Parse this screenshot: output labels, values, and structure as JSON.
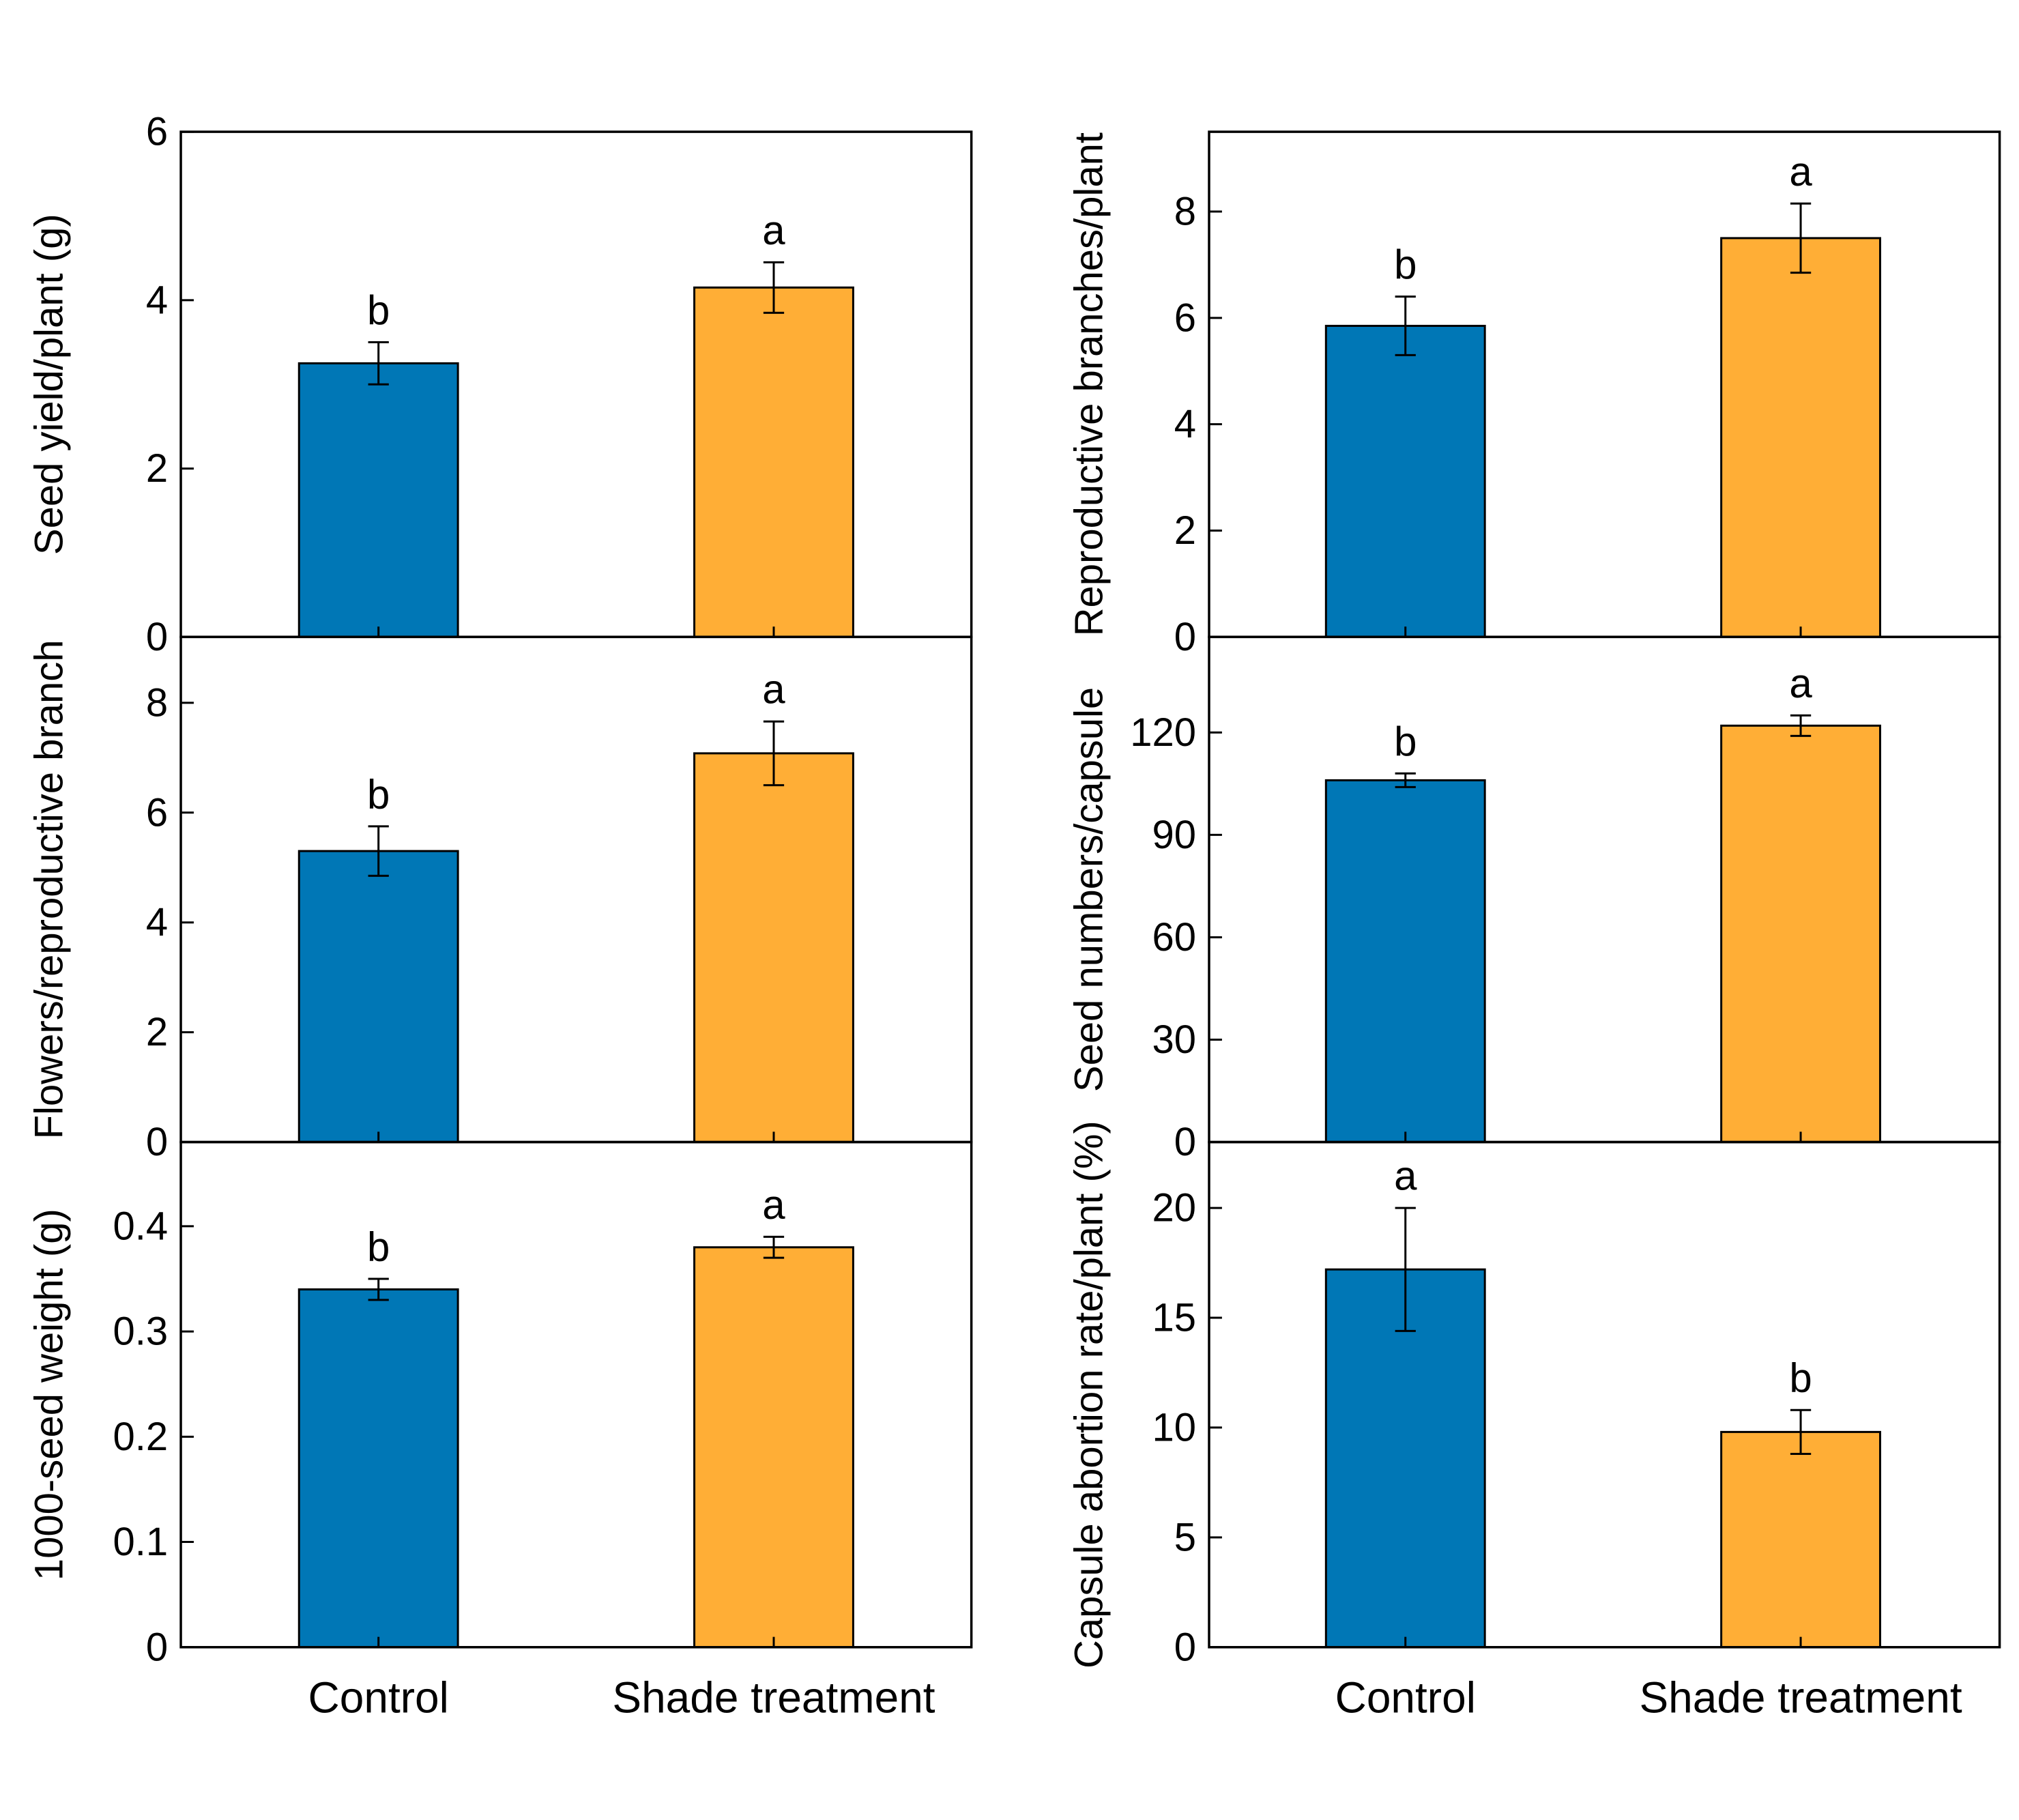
{
  "chart_data": [
    {
      "type": "bar",
      "panel": "top-left",
      "ylabel": "Seed yield/plant (g)",
      "categories": [
        "Control",
        "Shade treatment"
      ],
      "values": [
        3.25,
        4.15
      ],
      "errors": [
        0.25,
        0.3
      ],
      "significance": [
        "b",
        "a"
      ],
      "ylim": [
        0,
        6
      ],
      "yticks": [
        0,
        2,
        4,
        6
      ],
      "ytick_labels": [
        "0",
        "2",
        "4",
        "6"
      ],
      "colors": [
        "#0077B6",
        "#FFAE36"
      ],
      "show_xlabels": false
    },
    {
      "type": "bar",
      "panel": "top-right",
      "ylabel": "Reproductive branches/plant",
      "categories": [
        "Control",
        "Shade treatment"
      ],
      "values": [
        5.85,
        7.5
      ],
      "errors": [
        0.55,
        0.65
      ],
      "significance": [
        "b",
        "a"
      ],
      "ylim": [
        0,
        9.5
      ],
      "yticks": [
        0,
        2,
        4,
        6,
        8
      ],
      "ytick_labels": [
        "0",
        "2",
        "4",
        "6",
        "8"
      ],
      "colors": [
        "#0077B6",
        "#FFAE36"
      ],
      "show_xlabels": false
    },
    {
      "type": "bar",
      "panel": "middle-left",
      "ylabel": "Flowers/reproductive branch",
      "categories": [
        "Control",
        "Shade treatment"
      ],
      "values": [
        5.3,
        7.08
      ],
      "errors": [
        0.45,
        0.58
      ],
      "significance": [
        "b",
        "a"
      ],
      "ylim": [
        0,
        9.2
      ],
      "yticks": [
        0,
        2,
        4,
        6,
        8
      ],
      "ytick_labels": [
        "0",
        "2",
        "4",
        "6",
        "8"
      ],
      "colors": [
        "#0077B6",
        "#FFAE36"
      ],
      "show_xlabels": false
    },
    {
      "type": "bar",
      "panel": "middle-right",
      "ylabel": "Seed numbers/capsule",
      "categories": [
        "Control",
        "Shade treatment"
      ],
      "values": [
        106,
        122
      ],
      "errors": [
        2,
        3
      ],
      "significance": [
        "b",
        "a"
      ],
      "ylim": [
        0,
        148
      ],
      "yticks": [
        0,
        30,
        60,
        90,
        120
      ],
      "ytick_labels": [
        "0",
        "30",
        "60",
        "90",
        "120"
      ],
      "colors": [
        "#0077B6",
        "#FFAE36"
      ],
      "show_xlabels": false
    },
    {
      "type": "bar",
      "panel": "bottom-left",
      "ylabel": "1000-seed weight (g)",
      "categories": [
        "Control",
        "Shade treatment"
      ],
      "values": [
        0.34,
        0.38
      ],
      "errors": [
        0.01,
        0.01
      ],
      "significance": [
        "b",
        "a"
      ],
      "ylim": [
        0,
        0.48
      ],
      "yticks": [
        0,
        0.1,
        0.2,
        0.3,
        0.4
      ],
      "ytick_labels": [
        "0",
        "0.1",
        "0.2",
        "0.3",
        "0.4"
      ],
      "colors": [
        "#0077B6",
        "#FFAE36"
      ],
      "show_xlabels": true
    },
    {
      "type": "bar",
      "panel": "bottom-right",
      "ylabel": "Capsule abortion rate/plant (%)",
      "categories": [
        "Control",
        "Shade treatment"
      ],
      "values": [
        17.2,
        9.8
      ],
      "errors": [
        2.8,
        1.0
      ],
      "significance": [
        "a",
        "b"
      ],
      "ylim": [
        0,
        23
      ],
      "yticks": [
        0,
        5,
        10,
        15,
        20
      ],
      "ytick_labels": [
        "0",
        "5",
        "10",
        "15",
        "20"
      ],
      "colors": [
        "#0077B6",
        "#FFAE36"
      ],
      "show_xlabels": true
    }
  ]
}
